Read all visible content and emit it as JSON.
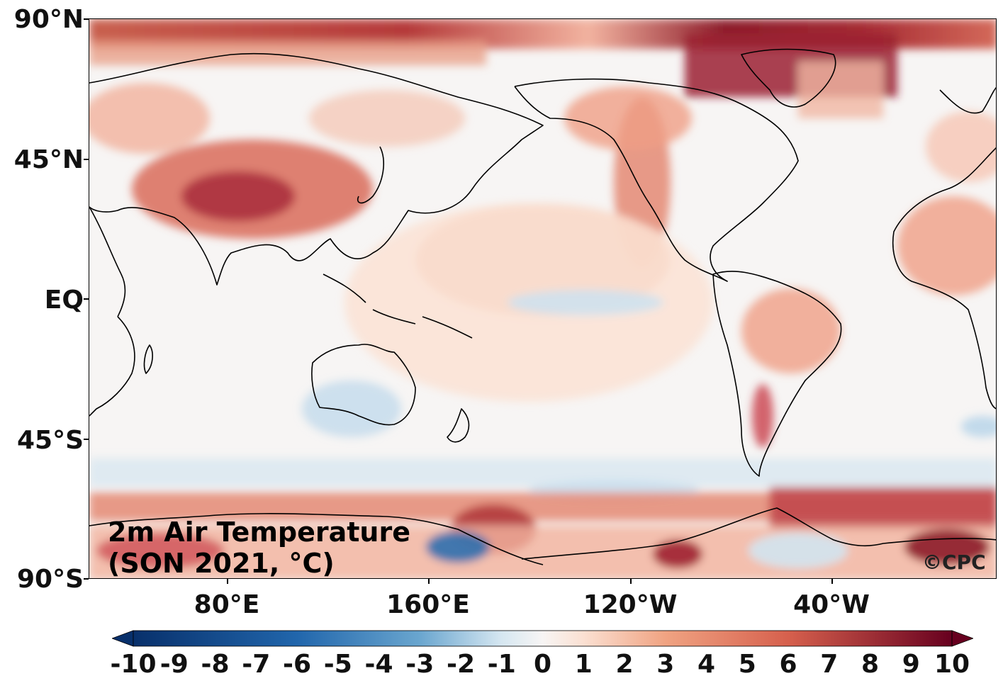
{
  "map": {
    "title_line1": "2m Air Temperature",
    "title_line2": "(SON 2021, °C)",
    "credit": "©CPC",
    "lat_labels": [
      "90°N",
      "45°N",
      "EQ",
      "45°S",
      "90°S"
    ],
    "lon_labels": [
      "80°E",
      "160°E",
      "120°W",
      "40°W"
    ],
    "projection": "plate carree, centered on Pacific",
    "colormap": "RdBu_r diverging (blue = cold anomaly, red = warm anomaly)"
  },
  "colorbar": {
    "min": -10,
    "max": 10,
    "tick_labels": [
      "-10",
      "-9",
      "-8",
      "-7",
      "-6",
      "-5",
      "-4",
      "-3",
      "-2",
      "-1",
      "0",
      "1",
      "2",
      "3",
      "4",
      "5",
      "6",
      "7",
      "8",
      "9",
      "10"
    ],
    "extend": "both",
    "colors": {
      "neg10": "#08306b",
      "neg6": "#2166ac",
      "neg3": "#6aa6cf",
      "neg1": "#d6e7f1",
      "zero": "#f7f5f4",
      "pos1": "#fbe0d2",
      "pos3": "#f0a382",
      "pos6": "#d6604d",
      "pos10": "#67001f"
    }
  },
  "colors": {
    "land_outline": "#000000",
    "background": "#f7f5f4"
  }
}
